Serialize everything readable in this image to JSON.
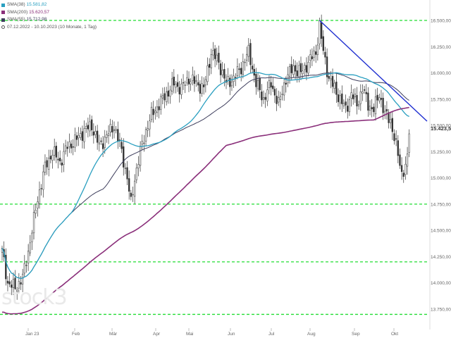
{
  "watermark": "stock3",
  "legend": {
    "items": [
      {
        "label": "SMA(38)",
        "value": "15.581,82",
        "color": "#2a9fc0"
      },
      {
        "label": "SMA(200)",
        "value": "15.620,57",
        "color": "#8a2f7a"
      },
      {
        "label": "SMA(55)",
        "value": "15.712,98",
        "color": "#3d3d5c"
      }
    ],
    "period": "07.12.2022 - 10.10.2023",
    "interval": "(10 Monate, 1 Tag)"
  },
  "chart_data": {
    "type": "candlestick",
    "ylim": [
      13600,
      16600
    ],
    "y_ticks": [
      "16.500,00",
      "16.250,00",
      "16.000,00",
      "15.750,00",
      "15.500,00",
      "15.250,00",
      "15.000,00",
      "14.750,00",
      "14.500,00",
      "14.250,00",
      "14.000,00",
      "13.750,00"
    ],
    "x_ticks": [
      "Jan 23",
      "Feb",
      "Mär",
      "Apr",
      "Mai",
      "Jun",
      "Jul",
      "Aug",
      "Sep",
      "Okt"
    ],
    "last_price_label": "15.423,52",
    "colors": {
      "candle": "#333333",
      "sma38": "#2a9fc0",
      "sma200": "#8a2f7a",
      "sma55": "#3d3d5c",
      "support_lines": "#22dd33",
      "trendline": "#1f2fd0"
    },
    "horizontal_levels": [
      16500,
      14750,
      14200,
      13700
    ],
    "trendline": [
      [
        16500,
        "Aug"
      ],
      [
        15540,
        "end"
      ]
    ],
    "price_anchors": [
      [
        0,
        14300
      ],
      [
        3,
        14000
      ],
      [
        7,
        13950
      ],
      [
        11,
        14050
      ],
      [
        14,
        14300
      ],
      [
        16,
        14500
      ],
      [
        19,
        14800
      ],
      [
        23,
        15100
      ],
      [
        27,
        15250
      ],
      [
        31,
        15150
      ],
      [
        35,
        15300
      ],
      [
        39,
        15350
      ],
      [
        44,
        15450
      ],
      [
        48,
        15500
      ],
      [
        52,
        15300
      ],
      [
        56,
        15400
      ],
      [
        60,
        15500
      ],
      [
        64,
        15250
      ],
      [
        67,
        15000
      ],
      [
        69,
        14750
      ],
      [
        71,
        15000
      ],
      [
        74,
        15250
      ],
      [
        77,
        15450
      ],
      [
        80,
        15600
      ],
      [
        84,
        15700
      ],
      [
        88,
        15800
      ],
      [
        92,
        15900
      ],
      [
        96,
        15850
      ],
      [
        100,
        15950
      ],
      [
        104,
        15900
      ],
      [
        108,
        15850
      ],
      [
        112,
        16200
      ],
      [
        116,
        16100
      ],
      [
        120,
        15900
      ],
      [
        124,
        15950
      ],
      [
        128,
        16050
      ],
      [
        132,
        16200
      ],
      [
        136,
        15900
      ],
      [
        140,
        15750
      ],
      [
        144,
        15900
      ],
      [
        148,
        15700
      ],
      [
        152,
        15950
      ],
      [
        156,
        16050
      ],
      [
        160,
        16000
      ],
      [
        164,
        16100
      ],
      [
        168,
        16200
      ],
      [
        170,
        16450
      ],
      [
        172,
        16200
      ],
      [
        175,
        15950
      ],
      [
        178,
        15850
      ],
      [
        181,
        15750
      ],
      [
        184,
        15650
      ],
      [
        187,
        15800
      ],
      [
        190,
        15700
      ],
      [
        193,
        15850
      ],
      [
        196,
        15700
      ],
      [
        199,
        15650
      ],
      [
        202,
        15800
      ],
      [
        205,
        15600
      ],
      [
        208,
        15550
      ],
      [
        211,
        15300
      ],
      [
        214,
        15050
      ],
      [
        216,
        15100
      ],
      [
        217,
        15180
      ],
      [
        218,
        15420
      ]
    ]
  }
}
